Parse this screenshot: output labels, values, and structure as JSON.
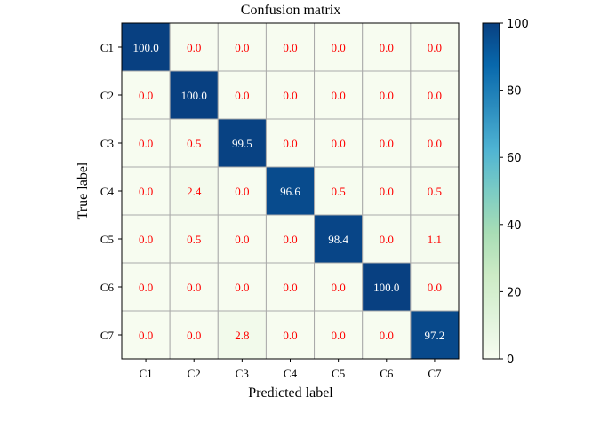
{
  "chart_data": {
    "type": "heatmap",
    "title": "Confusion matrix",
    "xlabel": "Predicted label",
    "ylabel": "True label",
    "x_categories": [
      "C1",
      "C2",
      "C3",
      "C4",
      "C5",
      "C6",
      "C7"
    ],
    "y_categories": [
      "C1",
      "C2",
      "C3",
      "C4",
      "C5",
      "C6",
      "C7"
    ],
    "values": [
      [
        100.0,
        0.0,
        0.0,
        0.0,
        0.0,
        0.0,
        0.0
      ],
      [
        0.0,
        100.0,
        0.0,
        0.0,
        0.0,
        0.0,
        0.0
      ],
      [
        0.0,
        0.5,
        99.5,
        0.0,
        0.0,
        0.0,
        0.0
      ],
      [
        0.0,
        2.4,
        0.0,
        96.6,
        0.5,
        0.0,
        0.5
      ],
      [
        0.0,
        0.5,
        0.0,
        0.0,
        98.4,
        0.0,
        1.1
      ],
      [
        0.0,
        0.0,
        0.0,
        0.0,
        0.0,
        100.0,
        0.0
      ],
      [
        0.0,
        0.0,
        2.8,
        0.0,
        0.0,
        0.0,
        97.2
      ]
    ],
    "colorbar": {
      "min": 0,
      "max": 100,
      "ticks": [
        0,
        20,
        40,
        60,
        80,
        100
      ]
    },
    "colormap": "GnBu",
    "grid": true,
    "colors": {
      "diagonal_text": "#ffffff",
      "offdiagonal_text": "#ff0000",
      "cell_border": "#aaaaaa"
    }
  }
}
